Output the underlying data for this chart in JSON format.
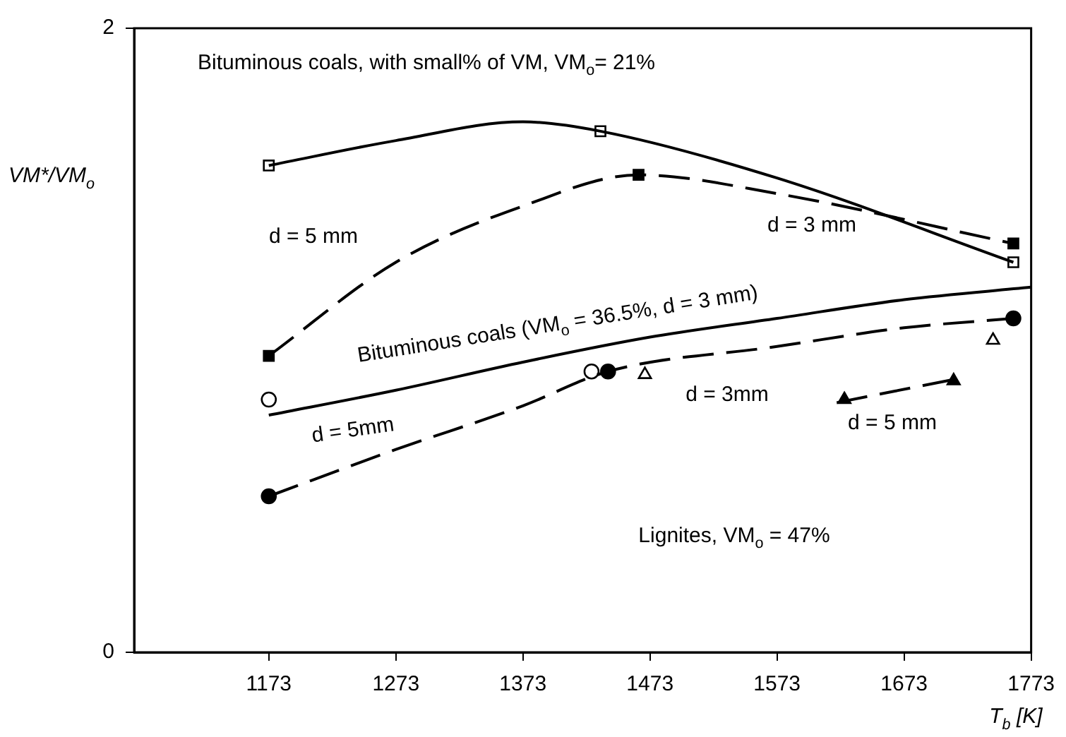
{
  "chart_data": {
    "type": "line",
    "xlabel": "T$_{b}$ [K]",
    "ylabel": "VM*/VM$_{o}$",
    "xlim": [
      1067,
      1773
    ],
    "xticks": [
      1173,
      1273,
      1373,
      1473,
      1573,
      1673,
      1773
    ],
    "ylim": [
      0,
      2
    ],
    "yticks": [
      0,
      2
    ],
    "grid": false,
    "legend": false,
    "marker": "none",
    "series": [
      {
        "line_style": "solid",
        "color": "#000000",
        "x": [
          1173,
          1273,
          1373,
          1434,
          1573,
          1759
        ],
        "values": [
          1.56,
          1.64,
          1.7,
          1.67,
          1.52,
          1.25
        ]
      },
      {
        "line_style": "dashed",
        "color": "#000000",
        "x": [
          1173,
          1273,
          1373,
          1464,
          1573,
          1759
        ],
        "values": [
          0.95,
          1.25,
          1.43,
          1.53,
          1.47,
          1.31
        ]
      },
      {
        "line_style": "solid",
        "color": "#000000",
        "x": [
          1173,
          1273,
          1373,
          1473,
          1573,
          1673,
          1773
        ],
        "values": [
          0.76,
          0.84,
          0.93,
          1.01,
          1.07,
          1.13,
          1.17
        ]
      },
      {
        "line_style": "dashed",
        "color": "#000000",
        "x": [
          1173,
          1273,
          1373,
          1440,
          1573,
          1673,
          1759
        ],
        "values": [
          0.5,
          0.65,
          0.79,
          0.9,
          0.98,
          1.04,
          1.07
        ]
      },
      {
        "line_style": "dashed",
        "color": "#000000",
        "x": [
          1620,
          1719
        ],
        "values": [
          0.8,
          0.88
        ]
      },
      {
        "type": "scatter",
        "marker": "square",
        "color": "#ffffff",
        "x": [
          1173,
          1434,
          1759
        ],
        "values": [
          1.56,
          1.67,
          1.25
        ]
      },
      {
        "type": "scatter",
        "marker": "square",
        "color": "#000000",
        "x": [
          1173,
          1464,
          1759
        ],
        "values": [
          0.95,
          1.53,
          1.31
        ]
      },
      {
        "type": "scatter",
        "marker": "circle",
        "color": "#ffffff",
        "x": [
          1173,
          1427
        ],
        "values": [
          0.81,
          0.9
        ]
      },
      {
        "type": "scatter",
        "marker": "circle",
        "color": "#000000",
        "x": [
          1173,
          1440,
          1759
        ],
        "values": [
          0.5,
          0.9,
          1.07
        ]
      },
      {
        "type": "scatter",
        "marker": "triangle",
        "color": "#ffffff",
        "x": [
          1469,
          1743
        ],
        "values": [
          0.89,
          1.0
        ]
      },
      {
        "type": "scatter",
        "marker": "triangle",
        "color": "#000000",
        "x": [
          1626,
          1712
        ],
        "values": [
          0.81,
          0.87
        ]
      }
    ],
    "annotations": [
      "Bituminous coals, with small% of VM, VM$_{o}$= 21%",
      "d = 3 mm",
      "d = 5 mm",
      "Bituminous coals (VM$_{o}$ = 36.5%, d = 3 mm)",
      "d = 5mm",
      "d = 3mm",
      "d = 5 mm",
      "Lignites, VM$_{o}$ = 47%"
    ]
  }
}
